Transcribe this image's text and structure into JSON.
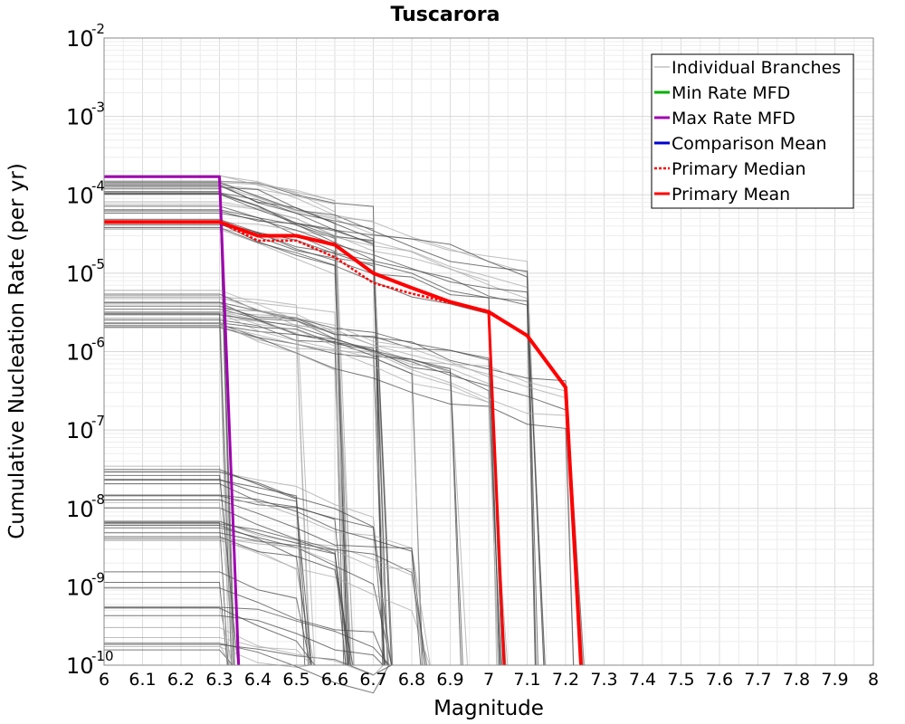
{
  "chart_data": {
    "type": "line",
    "title": "Tuscarora",
    "xlabel": "Magnitude",
    "ylabel": "Cumulative Nucleation Rate (per yr)",
    "xlim": [
      6,
      8
    ],
    "ylim": [
      1e-10,
      0.01
    ],
    "y_scale": "log",
    "grid": true,
    "legend_position": "top-right",
    "x_ticks": [
      "6",
      "6.1",
      "6.2",
      "6.3",
      "6.4",
      "6.5",
      "6.6",
      "6.7",
      "6.8",
      "6.9",
      "7",
      "7.1",
      "7.2",
      "7.3",
      "7.4",
      "7.5",
      "7.6",
      "7.7",
      "7.8",
      "7.9",
      "8"
    ],
    "y_ticks": [
      {
        "base": "10",
        "exp": "-10",
        "value": 1e-10
      },
      {
        "base": "10",
        "exp": "-9",
        "value": 1e-09
      },
      {
        "base": "10",
        "exp": "-8",
        "value": 1e-08
      },
      {
        "base": "10",
        "exp": "-7",
        "value": 1e-07
      },
      {
        "base": "10",
        "exp": "-6",
        "value": 1e-06
      },
      {
        "base": "10",
        "exp": "-5",
        "value": 1e-05
      },
      {
        "base": "10",
        "exp": "-4",
        "value": 0.0001
      },
      {
        "base": "10",
        "exp": "-3",
        "value": 0.001
      },
      {
        "base": "10",
        "exp": "-2",
        "value": 0.01
      }
    ],
    "series": [
      {
        "name": "Individual Branches",
        "color": "#c0c0c0",
        "dash": "",
        "width": 1.5,
        "x": [],
        "y": []
      },
      {
        "name": "Min Rate MFD",
        "color": "#00b000",
        "dash": "",
        "width": 3,
        "x": [],
        "y": []
      },
      {
        "name": "Max Rate MFD",
        "color": "#a000b0",
        "dash": "",
        "width": 3,
        "x": [
          6.0,
          6.3,
          6.35
        ],
        "y": [
          0.00017,
          0.00017,
          1e-10
        ]
      },
      {
        "name": "Comparison Mean",
        "color": "#0000d0",
        "dash": "",
        "width": 3,
        "x": [],
        "y": []
      },
      {
        "name": "Primary Median",
        "color": "#ff0000",
        "dash": "3,2",
        "width": 2.5,
        "x": [
          6.0,
          6.3,
          6.4,
          6.5,
          6.6,
          6.7,
          6.8,
          6.9,
          7.0,
          7.1,
          7.2,
          7.24
        ],
        "y": [
          4.5e-05,
          4.5e-05,
          2.6e-05,
          2.6e-05,
          1.6e-05,
          7.5e-06,
          5.5e-06,
          4.2e-06,
          3.3e-06,
          1.6e-06,
          3.5e-07,
          1e-10
        ]
      },
      {
        "name": "Primary Mean",
        "color": "#ff0000",
        "dash": "",
        "width": 4,
        "x": [
          6.0,
          6.3,
          6.4,
          6.5,
          6.6,
          6.7,
          6.8,
          6.9,
          7.0,
          7.1,
          7.2,
          7.24
        ],
        "y": [
          4.5e-05,
          4.5e-05,
          3e-05,
          3e-05,
          2.3e-05,
          1e-05,
          6.5e-06,
          4.3e-06,
          3.2e-06,
          1.6e-06,
          3.5e-07,
          1e-10
        ]
      }
    ],
    "red_drop_segments": [
      {
        "x": [
          7.0,
          7.04
        ],
        "y": [
          3.2e-06,
          1e-10
        ]
      }
    ],
    "branch_groups": [
      {
        "level": 8e-05,
        "spread": 0.35,
        "count": 34,
        "cutoffs": [
          6.3,
          6.6,
          6.7,
          7.0,
          7.1,
          7.2
        ]
      },
      {
        "level": 3.5e-06,
        "spread": 0.25,
        "count": 30,
        "cutoffs": [
          6.3,
          6.5,
          6.6,
          6.7,
          6.8,
          6.9,
          7.0,
          7.2
        ]
      },
      {
        "level": 1.2e-08,
        "spread": 0.5,
        "count": 26,
        "cutoffs": [
          6.3,
          6.5,
          6.6,
          6.7,
          6.8
        ]
      },
      {
        "level": 6e-10,
        "spread": 0.6,
        "count": 14,
        "cutoffs": [
          6.3,
          6.5,
          6.7,
          6.8
        ]
      }
    ]
  }
}
